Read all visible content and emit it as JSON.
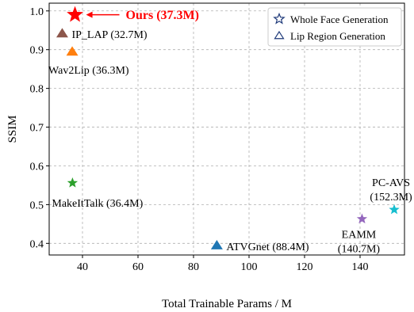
{
  "chart_data": {
    "type": "scatter",
    "xlabel": "Total Trainable Params / M",
    "ylabel": "SSIM",
    "xlim": [
      28,
      156
    ],
    "ylim": [
      0.37,
      1.02
    ],
    "x_ticks": [
      40,
      60,
      80,
      100,
      120,
      140
    ],
    "y_ticks": [
      0.4,
      0.5,
      0.6,
      0.7,
      0.8,
      0.9,
      1.0
    ],
    "x_tick_labels": [
      "40",
      "60",
      "80",
      "100",
      "120",
      "140"
    ],
    "y_tick_labels": [
      "0.4",
      "0.5",
      "0.6",
      "0.7",
      "0.8",
      "0.9",
      "1.0"
    ],
    "grid": true,
    "legend": {
      "position": "top-right",
      "entries": [
        {
          "label": "Whole Face Generation",
          "marker": "star"
        },
        {
          "label": "Lip Region Generation",
          "marker": "triangle"
        }
      ]
    },
    "points": [
      {
        "label": "Ours (37.3M)",
        "x": 37.3,
        "y": 0.99,
        "marker": "star",
        "color": "#ff0000",
        "highlight": true
      },
      {
        "label": "IP_LAP (32.7M)",
        "x": 32.7,
        "y": 0.942,
        "marker": "triangle",
        "color": "#8c564b"
      },
      {
        "label": "Wav2Lip (36.3M)",
        "x": 36.3,
        "y": 0.895,
        "marker": "triangle",
        "color": "#ff7f0e"
      },
      {
        "label": "MakeItTalk (36.4M)",
        "x": 36.4,
        "y": 0.556,
        "marker": "star",
        "color": "#2ca02c"
      },
      {
        "label": "ATVGnet (88.4M)",
        "x": 88.4,
        "y": 0.395,
        "marker": "triangle",
        "color": "#1f77b4"
      },
      {
        "label": "EAMM (140.7M)",
        "x": 140.7,
        "y": 0.463,
        "marker": "star",
        "color": "#9467bd"
      },
      {
        "label": "PC-AVS (152.3M)",
        "x": 152.3,
        "y": 0.487,
        "marker": "star",
        "color": "#17becf"
      }
    ]
  }
}
